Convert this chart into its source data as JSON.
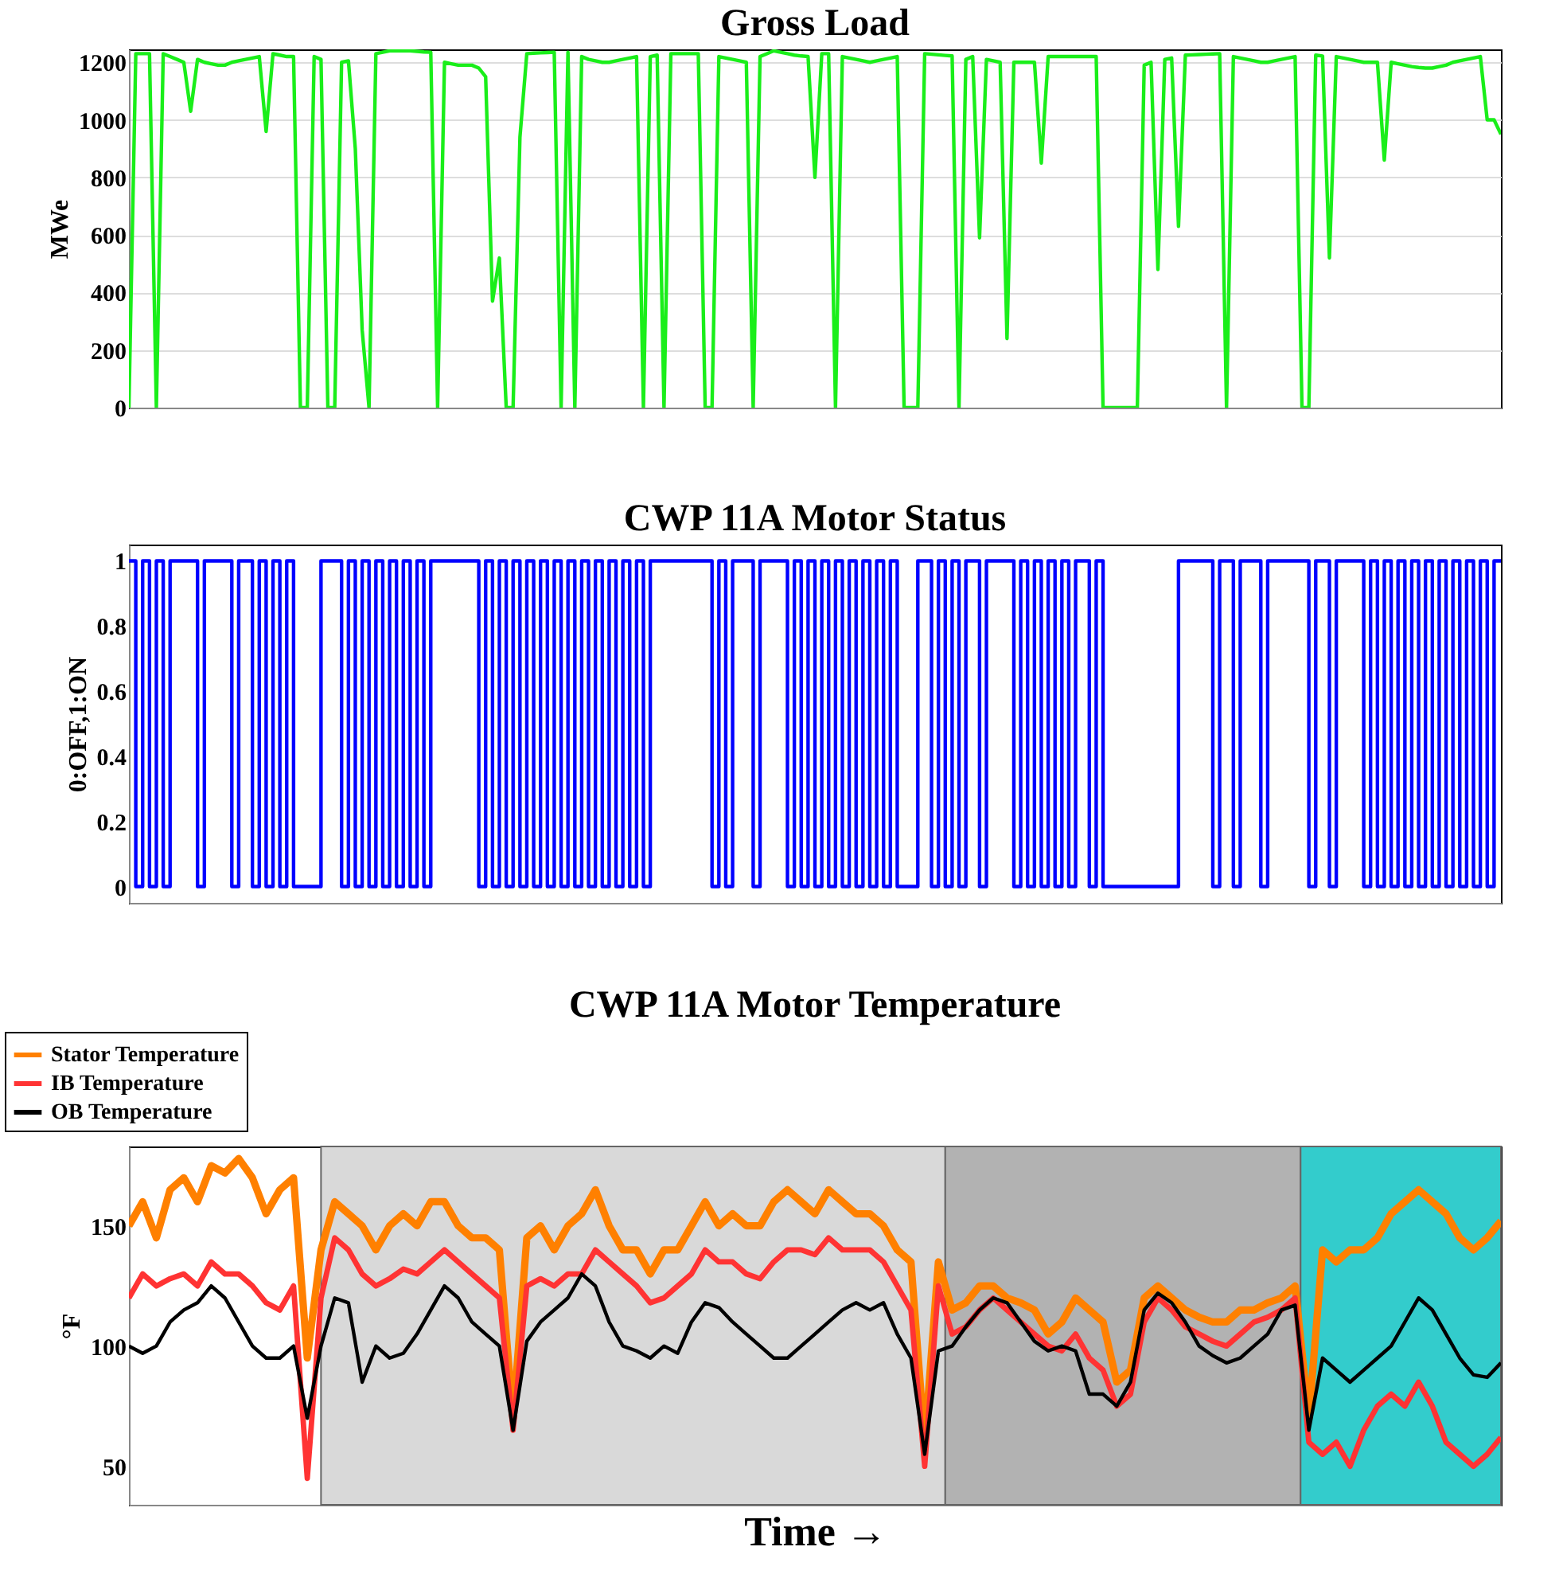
{
  "chart_data": [
    {
      "type": "line",
      "title": "Gross Load",
      "ylabel": "MWe",
      "ylim": [
        0,
        1245
      ],
      "yticks": [
        0,
        200,
        400,
        600,
        800,
        1000,
        1200
      ],
      "grid": "y",
      "legend": false,
      "tick_labels": "y",
      "categories": [
        null,
        null,
        null,
        null,
        null,
        null,
        null,
        null,
        null,
        null,
        null,
        null,
        null,
        null,
        null,
        null,
        null,
        null,
        null,
        null,
        null,
        null,
        null,
        null,
        null,
        null,
        null,
        null,
        null,
        null,
        null,
        null,
        null,
        null,
        null,
        null,
        null,
        null,
        null,
        null,
        null,
        null,
        null,
        null,
        null,
        null,
        null,
        null,
        null,
        null,
        null,
        null,
        null,
        null,
        null,
        null,
        null,
        null,
        null,
        null,
        null,
        null,
        null,
        null,
        null,
        null,
        null,
        null,
        null,
        null,
        null,
        null,
        null,
        null,
        null,
        null,
        null,
        null,
        null,
        null,
        null,
        null,
        null,
        null,
        null,
        null,
        null,
        null,
        null,
        null,
        null,
        null,
        null,
        null,
        null,
        null,
        null,
        null,
        null,
        null,
        null,
        null,
        null,
        null,
        null,
        null,
        null,
        null,
        null,
        null,
        null,
        null,
        null,
        null,
        null,
        null,
        null,
        null,
        null,
        null,
        null,
        null,
        null,
        null,
        null,
        null,
        null,
        null,
        null,
        null,
        null,
        null,
        null,
        null,
        null,
        null,
        null,
        null,
        null,
        null,
        null,
        null,
        null,
        null,
        null,
        null,
        null,
        null,
        null,
        null,
        null,
        null,
        null,
        null,
        null,
        null,
        null,
        null,
        null,
        null,
        null,
        null,
        null,
        null,
        null,
        null,
        null,
        null,
        null,
        null,
        null,
        null,
        null,
        null,
        null,
        null,
        null,
        null,
        null,
        null,
        null,
        null,
        null,
        null,
        null,
        null,
        null,
        null,
        null,
        null,
        null,
        null,
        null,
        null,
        null,
        null,
        null,
        null,
        null,
        null,
        null
      ],
      "series": [
        {
          "color": "#1aee1a",
          "values": [
            0,
            1230,
            1230,
            1230,
            0,
            1230,
            1220,
            1210,
            1200,
            1030,
            1210,
            1200,
            1195,
            1190,
            1190,
            1200,
            1205,
            1210,
            1215,
            1220,
            960,
            1230,
            1225,
            1220,
            1220,
            0,
            0,
            1220,
            1210,
            0,
            0,
            1200,
            1205,
            900,
            270,
            0,
            1230,
            1235,
            1240,
            1240,
            1240,
            1240,
            1238,
            1236,
            1235,
            0,
            1200,
            1195,
            1190,
            1190,
            1190,
            1180,
            1150,
            370,
            520,
            0,
            0,
            940,
            1230,
            1232,
            1233,
            1234,
            1235,
            0,
            1235,
            0,
            1220,
            1210,
            1205,
            1200,
            1200,
            1205,
            1210,
            1215,
            1220,
            0,
            1220,
            1225,
            0,
            1230,
            1230,
            1230,
            1230,
            1230,
            0,
            0,
            1220,
            1215,
            1210,
            1205,
            1200,
            0,
            1220,
            1230,
            1240,
            1235,
            1230,
            1225,
            1222,
            1220,
            800,
            1230,
            1230,
            0,
            1220,
            1215,
            1210,
            1205,
            1200,
            1205,
            1210,
            1215,
            1220,
            0,
            0,
            0,
            1230,
            1228,
            1226,
            1224,
            1222,
            0,
            1210,
            1220,
            590,
            1210,
            1205,
            1200,
            240,
            1200,
            1200,
            1200,
            1200,
            850,
            1220,
            1220,
            1220,
            1220,
            1220,
            1220,
            1220,
            1220,
            0,
            0,
            0,
            0,
            0,
            0,
            1190,
            1200,
            480,
            1210,
            1215,
            630,
            1225,
            1226,
            1227,
            1228,
            1229,
            1230,
            0,
            1220,
            1215,
            1210,
            1205,
            1200,
            1200,
            1205,
            1210,
            1215,
            1220,
            0,
            0,
            1225,
            1222,
            520,
            1220,
            1215,
            1210,
            1205,
            1200,
            1200,
            1200,
            860,
            1200,
            1195,
            1190,
            1185,
            1182,
            1180,
            1180,
            1185,
            1190,
            1200,
            1205,
            1210,
            1215,
            1220,
            1000,
            1000,
            950
          ]
        }
      ]
    },
    {
      "type": "step",
      "title": "CWP 11A Motor Status",
      "ylabel": "0:OFF,1:ON",
      "ylim": [
        -0.05,
        1.05
      ],
      "yticks": [
        0,
        0.2,
        0.4,
        0.6,
        0.8,
        1
      ],
      "grid": false,
      "legend": false,
      "tick_labels": "y",
      "categories": [
        null,
        null,
        null,
        null,
        null,
        null,
        null,
        null,
        null,
        null,
        null,
        null,
        null,
        null,
        null,
        null,
        null,
        null,
        null,
        null,
        null,
        null,
        null,
        null,
        null,
        null,
        null,
        null,
        null,
        null,
        null,
        null,
        null,
        null,
        null,
        null,
        null,
        null,
        null,
        null,
        null,
        null,
        null,
        null,
        null,
        null,
        null,
        null,
        null,
        null,
        null,
        null,
        null,
        null,
        null,
        null,
        null,
        null,
        null,
        null,
        null,
        null,
        null,
        null,
        null,
        null,
        null,
        null,
        null,
        null,
        null,
        null,
        null,
        null,
        null,
        null,
        null,
        null,
        null,
        null,
        null,
        null,
        null,
        null,
        null,
        null,
        null,
        null,
        null,
        null,
        null,
        null,
        null,
        null,
        null,
        null,
        null,
        null,
        null,
        null,
        null,
        null,
        null,
        null,
        null,
        null,
        null,
        null,
        null,
        null,
        null,
        null,
        null,
        null,
        null,
        null,
        null,
        null,
        null,
        null,
        null,
        null,
        null,
        null,
        null,
        null,
        null,
        null,
        null,
        null,
        null,
        null,
        null,
        null,
        null,
        null,
        null,
        null,
        null,
        null,
        null,
        null,
        null,
        null,
        null,
        null,
        null,
        null,
        null,
        null,
        null,
        null,
        null,
        null,
        null,
        null,
        null,
        null,
        null,
        null,
        null,
        null,
        null,
        null,
        null,
        null,
        null,
        null,
        null,
        null,
        null,
        null,
        null,
        null,
        null,
        null,
        null,
        null,
        null,
        null,
        null,
        null,
        null,
        null,
        null,
        null,
        null,
        null,
        null,
        null,
        null,
        null,
        null,
        null,
        null,
        null,
        null,
        null,
        null,
        null,
        null
      ],
      "series": [
        {
          "color": "#0000ff",
          "values": [
            1,
            0,
            1,
            0,
            1,
            0,
            1,
            1,
            1,
            1,
            0,
            1,
            1,
            1,
            1,
            0,
            1,
            1,
            0,
            1,
            0,
            1,
            0,
            1,
            0,
            0,
            0,
            0,
            1,
            1,
            1,
            0,
            1,
            0,
            1,
            0,
            1,
            0,
            1,
            0,
            1,
            0,
            1,
            0,
            1,
            1,
            1,
            1,
            1,
            1,
            1,
            0,
            1,
            0,
            1,
            0,
            1,
            0,
            1,
            0,
            1,
            0,
            1,
            0,
            1,
            0,
            1,
            0,
            1,
            0,
            1,
            0,
            1,
            0,
            1,
            0,
            1,
            1,
            1,
            1,
            1,
            1,
            1,
            1,
            1,
            0,
            1,
            0,
            1,
            1,
            1,
            0,
            1,
            1,
            1,
            1,
            0,
            1,
            0,
            1,
            0,
            1,
            0,
            1,
            0,
            1,
            0,
            1,
            0,
            1,
            0,
            1,
            0,
            0,
            0,
            1,
            1,
            0,
            1,
            0,
            1,
            0,
            1,
            1,
            0,
            1,
            1,
            1,
            1,
            0,
            1,
            0,
            1,
            0,
            1,
            0,
            1,
            0,
            1,
            1,
            0,
            1,
            0,
            0,
            0,
            0,
            0,
            0,
            0,
            0,
            0,
            0,
            0,
            1,
            1,
            1,
            1,
            1,
            0,
            1,
            1,
            0,
            1,
            1,
            1,
            0,
            1,
            1,
            1,
            1,
            1,
            1,
            0,
            1,
            1,
            0,
            1,
            1,
            1,
            1,
            0,
            1,
            0,
            1,
            0,
            1,
            0,
            1,
            0,
            1,
            0,
            1,
            0,
            1,
            0,
            1,
            0,
            1,
            0,
            1,
            1
          ]
        }
      ]
    },
    {
      "type": "line",
      "title": "CWP 11A Motor Temperature",
      "xlabel": "Time →",
      "ylabel": "°F",
      "ylim": [
        34,
        183
      ],
      "yticks": [
        50,
        100,
        150
      ],
      "grid": false,
      "legend": "top left",
      "tick_labels": "y",
      "categories": [
        null,
        null,
        null,
        null,
        null,
        null,
        null,
        null,
        null,
        null,
        null,
        null,
        null,
        null,
        null,
        null,
        null,
        null,
        null,
        null,
        null,
        null,
        null,
        null,
        null,
        null,
        null,
        null,
        null,
        null,
        null,
        null,
        null,
        null,
        null,
        null,
        null,
        null,
        null,
        null,
        null,
        null,
        null,
        null,
        null,
        null,
        null,
        null,
        null,
        null,
        null,
        null,
        null,
        null,
        null,
        null,
        null,
        null,
        null,
        null,
        null,
        null,
        null,
        null,
        null,
        null,
        null,
        null,
        null,
        null,
        null,
        null,
        null,
        null,
        null,
        null,
        null,
        null,
        null,
        null,
        null,
        null,
        null,
        null,
        null,
        null,
        null,
        null,
        null,
        null,
        null,
        null,
        null,
        null,
        null,
        null,
        null,
        null,
        null,
        null,
        null
      ],
      "series": [
        {
          "name": "Stator Temperature",
          "color": "#ff8000",
          "values": [
            150,
            160,
            145,
            165,
            170,
            160,
            175,
            172,
            178,
            170,
            155,
            165,
            170,
            95,
            140,
            160,
            155,
            150,
            140,
            150,
            155,
            150,
            160,
            160,
            150,
            145,
            145,
            140,
            70,
            145,
            150,
            140,
            150,
            155,
            165,
            150,
            140,
            140,
            130,
            140,
            140,
            150,
            160,
            150,
            155,
            150,
            150,
            160,
            165,
            160,
            155,
            165,
            160,
            155,
            155,
            150,
            140,
            135,
            60,
            135,
            115,
            118,
            125,
            125,
            120,
            118,
            115,
            105,
            110,
            120,
            115,
            110,
            85,
            90,
            120,
            125,
            120,
            115,
            112,
            110,
            110,
            115,
            115,
            118,
            120,
            125,
            70,
            140,
            135,
            140,
            140,
            145,
            155,
            160,
            165,
            160,
            155,
            145,
            140,
            145,
            152
          ]
        },
        {
          "name": "IB Temperature",
          "color": "#ff3333",
          "values": [
            120,
            130,
            125,
            128,
            130,
            125,
            135,
            130,
            130,
            125,
            118,
            115,
            125,
            45,
            120,
            145,
            140,
            130,
            125,
            128,
            132,
            130,
            135,
            140,
            135,
            130,
            125,
            120,
            65,
            125,
            128,
            125,
            130,
            130,
            140,
            135,
            130,
            125,
            118,
            120,
            125,
            130,
            140,
            135,
            135,
            130,
            128,
            135,
            140,
            140,
            138,
            145,
            140,
            140,
            140,
            135,
            125,
            115,
            50,
            125,
            105,
            108,
            115,
            120,
            115,
            110,
            105,
            100,
            98,
            105,
            95,
            90,
            75,
            80,
            110,
            120,
            115,
            108,
            105,
            102,
            100,
            105,
            110,
            112,
            115,
            120,
            60,
            55,
            60,
            50,
            65,
            75,
            80,
            75,
            85,
            75,
            60,
            55,
            50,
            55,
            62
          ]
        },
        {
          "name": "OB Temperature",
          "color": "#000000",
          "values": [
            100,
            97,
            100,
            110,
            115,
            118,
            125,
            120,
            110,
            100,
            95,
            95,
            100,
            70,
            100,
            120,
            118,
            85,
            100,
            95,
            97,
            105,
            115,
            125,
            120,
            110,
            105,
            100,
            65,
            102,
            110,
            115,
            120,
            130,
            125,
            110,
            100,
            98,
            95,
            100,
            97,
            110,
            118,
            116,
            110,
            105,
            100,
            95,
            95,
            100,
            105,
            110,
            115,
            118,
            115,
            118,
            105,
            95,
            55,
            98,
            100,
            108,
            115,
            120,
            118,
            110,
            102,
            98,
            100,
            98,
            80,
            80,
            75,
            85,
            115,
            122,
            118,
            110,
            100,
            96,
            93,
            95,
            100,
            105,
            115,
            117,
            65,
            95,
            90,
            85,
            90,
            95,
            100,
            110,
            120,
            115,
            105,
            95,
            88,
            87,
            93
          ]
        }
      ]
    }
  ]
}
